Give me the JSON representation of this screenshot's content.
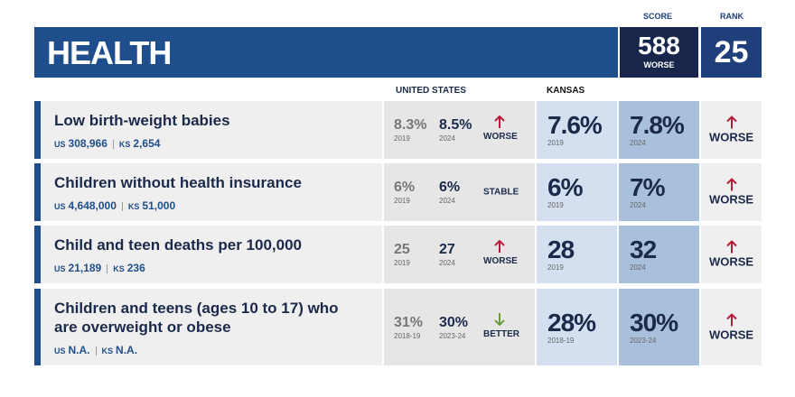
{
  "header": {
    "title": "HEALTH",
    "score_label": "SCORE",
    "score": "588",
    "score_note": "WORSE",
    "rank_label": "RANK",
    "rank": "25"
  },
  "columns": {
    "us": "UNITED STATES",
    "ks": "KANSAS"
  },
  "labels": {
    "us_prefix": "US",
    "ks_prefix": "KS"
  },
  "rows": [
    {
      "indicator": "Low birth-weight babies",
      "us_count": "308,966",
      "ks_count": "2,654",
      "us": [
        {
          "value": "8.3%",
          "year": "2019"
        },
        {
          "value": "8.5%",
          "year": "2024"
        }
      ],
      "us_trend": "WORSE",
      "ks": [
        {
          "value": "7.6%",
          "year": "2019"
        },
        {
          "value": "7.8%",
          "year": "2024"
        }
      ],
      "ks_trend": "WORSE"
    },
    {
      "indicator": "Children without health insurance",
      "us_count": "4,648,000",
      "ks_count": "51,000",
      "us": [
        {
          "value": "6%",
          "year": "2019"
        },
        {
          "value": "6%",
          "year": "2024"
        }
      ],
      "us_trend": "STABLE",
      "ks": [
        {
          "value": "6%",
          "year": "2019"
        },
        {
          "value": "7%",
          "year": "2024"
        }
      ],
      "ks_trend": "WORSE"
    },
    {
      "indicator": "Child and teen deaths per 100,000",
      "us_count": "21,189",
      "ks_count": "236",
      "us": [
        {
          "value": "25",
          "year": "2019"
        },
        {
          "value": "27",
          "year": "2024"
        }
      ],
      "us_trend": "WORSE",
      "ks": [
        {
          "value": "28",
          "year": "2019"
        },
        {
          "value": "32",
          "year": "2024"
        }
      ],
      "ks_trend": "WORSE"
    },
    {
      "indicator": "Children and teens (ages 10 to 17) who are overweight or obese",
      "us_count": "N.A.",
      "ks_count": "N.A.",
      "us": [
        {
          "value": "31%",
          "year": "2018-19"
        },
        {
          "value": "30%",
          "year": "2023-24"
        }
      ],
      "us_trend": "BETTER",
      "ks": [
        {
          "value": "28%",
          "year": "2018-19"
        },
        {
          "value": "30%",
          "year": "2023-24"
        }
      ],
      "ks_trend": "WORSE"
    }
  ]
}
